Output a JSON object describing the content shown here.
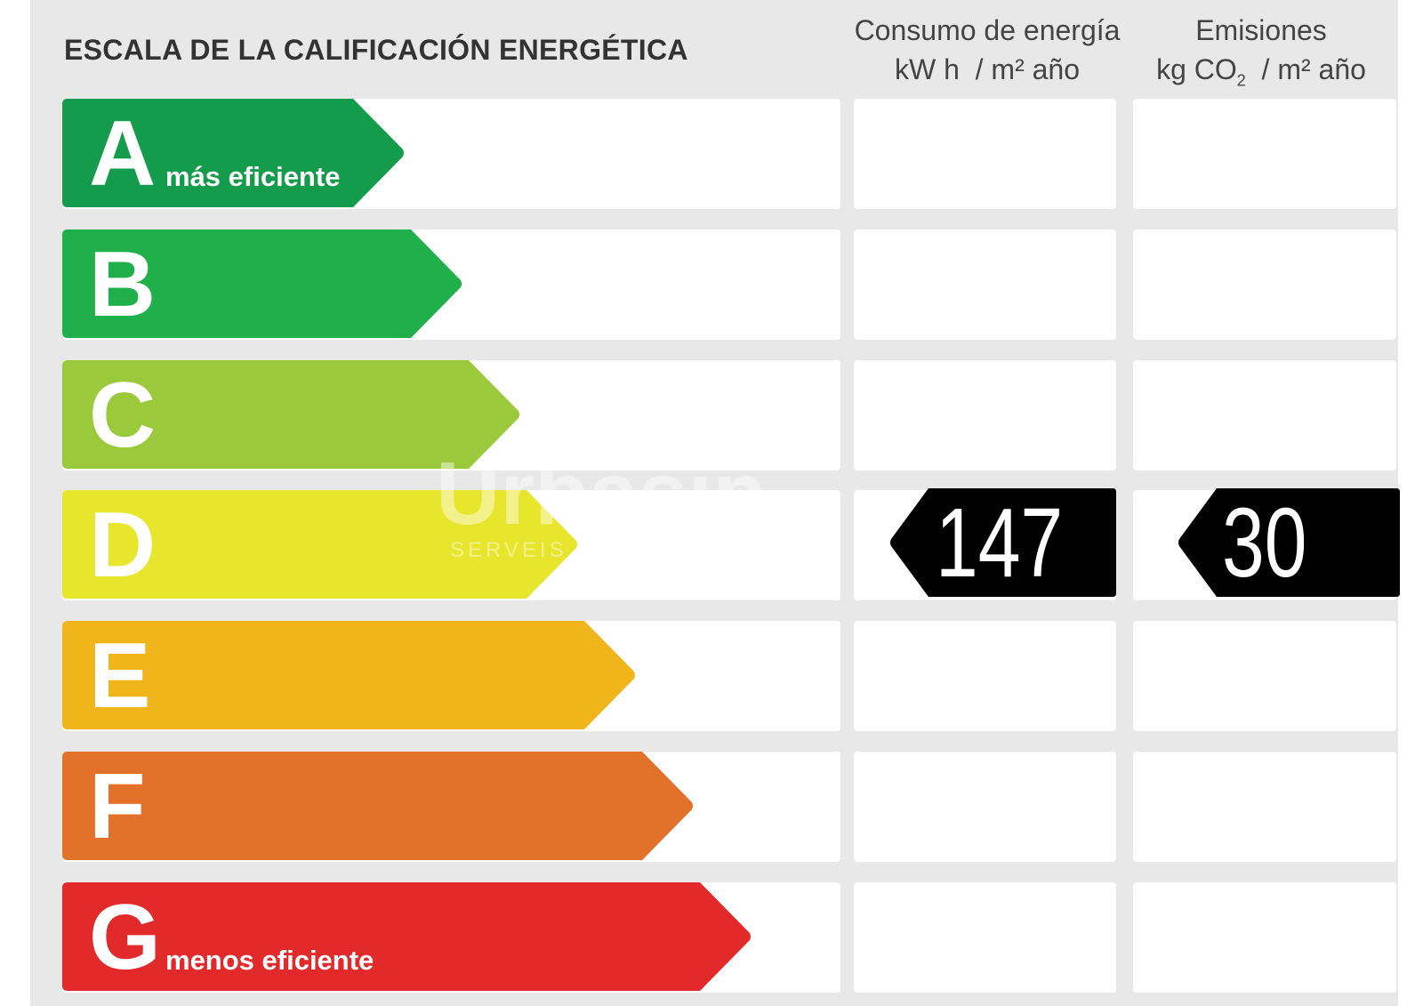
{
  "title": "ESCALA DE LA CALIFICACIÓN ENERGÉTICA",
  "columns": {
    "energy": {
      "line1": "Consumo de energía",
      "line2": "kW h  / m² año"
    },
    "emissions": {
      "line1": "Emisiones",
      "line2a": "kg CO",
      "line2_sub": "2",
      "line2b": "  / m² año"
    }
  },
  "scale": [
    {
      "letter": "A",
      "label": "más eficiente",
      "color": "#149b4b"
    },
    {
      "letter": "B",
      "label": "",
      "color": "#20b04b"
    },
    {
      "letter": "C",
      "label": "",
      "color": "#9bc93c"
    },
    {
      "letter": "D",
      "label": "",
      "color": "#e8e52d"
    },
    {
      "letter": "E",
      "label": "",
      "color": "#efb51b"
    },
    {
      "letter": "F",
      "label": "",
      "color": "#e2722a"
    },
    {
      "letter": "G",
      "label": "menos eficiente",
      "color": "#e22a2a"
    }
  ],
  "rating": {
    "energy_class": "D",
    "energy_value": "147",
    "emissions_class": "D",
    "emissions_value": "30",
    "marker_color": "#000000"
  },
  "watermark": {
    "main": "Urbasin",
    "sub": "SERVEIS IMMOBILIARIS"
  }
}
